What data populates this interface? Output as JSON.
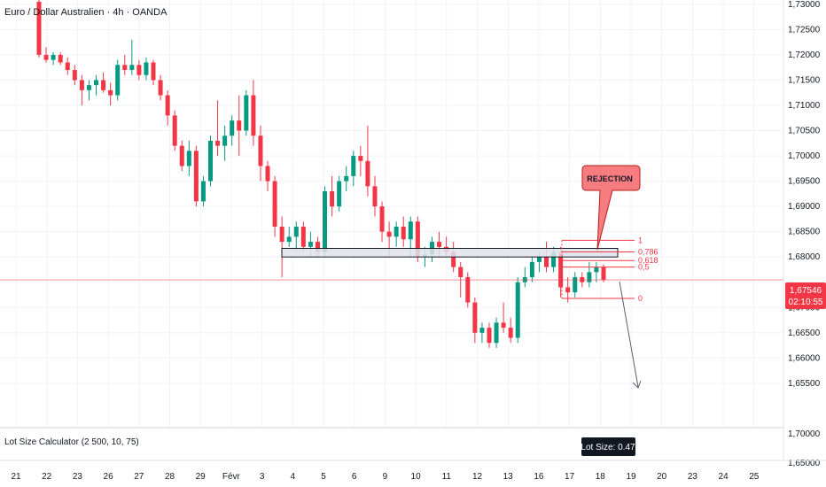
{
  "header": {
    "title": "Euro / Dollar Australien · 4h · OANDA"
  },
  "price_axis": {
    "ticks": [
      "1,73000",
      "1,72500",
      "1,72000",
      "1,71500",
      "1,71000",
      "1,70500",
      "1,70000",
      "1,69500",
      "1,69000",
      "1,68500",
      "1,68000",
      "1,67000",
      "1,66500",
      "1,66000",
      "1,65500"
    ],
    "tick_values": [
      1.73,
      1.725,
      1.72,
      1.715,
      1.71,
      1.705,
      1.7,
      1.695,
      1.69,
      1.685,
      1.68,
      1.67,
      1.665,
      1.66,
      1.655
    ],
    "current_price": "1,67546",
    "countdown": "02:10:55",
    "current_value": 1.67546,
    "indicator_ticks": [
      "1,70000",
      "1,65000"
    ]
  },
  "time_axis": {
    "labels": [
      "21",
      "22",
      "23",
      "26",
      "27",
      "28",
      "29",
      "Févr",
      "3",
      "4",
      "5",
      "6",
      "9",
      "10",
      "11",
      "12",
      "13",
      "16",
      "17",
      "18",
      "19",
      "20",
      "23",
      "24",
      "25"
    ]
  },
  "annotation": {
    "text": "REJECTION"
  },
  "fib_levels": [
    {
      "label": "1",
      "value": 1.6833
    },
    {
      "label": "0,786",
      "value": 1.681
    },
    {
      "label": "0,618",
      "value": 1.6793
    },
    {
      "label": "0,5",
      "value": 1.678
    },
    {
      "label": "0",
      "value": 1.6718
    }
  ],
  "indicator": {
    "name": "Lot Size Calculator (2 500, 10, 75)",
    "badge": "Lot Size: 0.47"
  },
  "colors": {
    "up": "#089981",
    "down": "#f23645",
    "grid": "#f0f3fa",
    "zone_fill": "#e0e3eb",
    "badge_bg": "#131722",
    "callout_fill": "#f77c80"
  },
  "chart_data": {
    "type": "candlestick",
    "title": "Euro / Dollar Australien · 4h · OANDA",
    "ylim": [
      1.652,
      1.7305
    ],
    "zone": [
      1.68,
      1.6817
    ],
    "candles": [
      [
        1.7305,
        1.731,
        1.7195,
        1.72
      ],
      [
        1.72,
        1.7215,
        1.7185,
        1.719
      ],
      [
        1.719,
        1.7205,
        1.718,
        1.72
      ],
      [
        1.72,
        1.7205,
        1.718,
        1.7185
      ],
      [
        1.7185,
        1.7195,
        1.716,
        1.717
      ],
      [
        1.717,
        1.718,
        1.714,
        1.715
      ],
      [
        1.715,
        1.716,
        1.71,
        1.713
      ],
      [
        1.713,
        1.715,
        1.711,
        1.714
      ],
      [
        1.714,
        1.716,
        1.712,
        1.715
      ],
      [
        1.715,
        1.7165,
        1.7125,
        1.713
      ],
      [
        1.713,
        1.7145,
        1.71,
        1.712
      ],
      [
        1.712,
        1.719,
        1.711,
        1.718
      ],
      [
        1.718,
        1.72,
        1.716,
        1.717
      ],
      [
        1.717,
        1.723,
        1.716,
        1.718
      ],
      [
        1.718,
        1.719,
        1.715,
        1.716
      ],
      [
        1.716,
        1.7195,
        1.715,
        1.7185
      ],
      [
        1.7185,
        1.719,
        1.714,
        1.715
      ],
      [
        1.715,
        1.716,
        1.711,
        1.712
      ],
      [
        1.712,
        1.713,
        1.706,
        1.708
      ],
      [
        1.708,
        1.709,
        1.701,
        1.702
      ],
      [
        1.702,
        1.703,
        1.697,
        1.698
      ],
      [
        1.698,
        1.703,
        1.696,
        1.701
      ],
      [
        1.701,
        1.702,
        1.69,
        1.691
      ],
      [
        1.691,
        1.696,
        1.69,
        1.695
      ],
      [
        1.695,
        1.704,
        1.694,
        1.703
      ],
      [
        1.703,
        1.711,
        1.7,
        1.702
      ],
      [
        1.702,
        1.706,
        1.699,
        1.704
      ],
      [
        1.704,
        1.708,
        1.702,
        1.707
      ],
      [
        1.707,
        1.712,
        1.7,
        1.705
      ],
      [
        1.705,
        1.713,
        1.704,
        1.712
      ],
      [
        1.712,
        1.715,
        1.702,
        1.704
      ],
      [
        1.704,
        1.706,
        1.695,
        1.698
      ],
      [
        1.698,
        1.699,
        1.693,
        1.695
      ],
      [
        1.695,
        1.696,
        1.684,
        1.686
      ],
      [
        1.686,
        1.688,
        1.676,
        1.683
      ],
      [
        1.683,
        1.686,
        1.682,
        1.684
      ],
      [
        1.684,
        1.687,
        1.681,
        1.686
      ],
      [
        1.686,
        1.687,
        1.681,
        1.682
      ],
      [
        1.682,
        1.685,
        1.68,
        1.683
      ],
      [
        1.683,
        1.684,
        1.68,
        1.681
      ],
      [
        1.681,
        1.694,
        1.68,
        1.693
      ],
      [
        1.693,
        1.696,
        1.688,
        1.69
      ],
      [
        1.69,
        1.696,
        1.689,
        1.695
      ],
      [
        1.695,
        1.698,
        1.693,
        1.696
      ],
      [
        1.696,
        1.701,
        1.694,
        1.7
      ],
      [
        1.7,
        1.702,
        1.696,
        1.699
      ],
      [
        1.699,
        1.706,
        1.692,
        1.694
      ],
      [
        1.694,
        1.696,
        1.688,
        1.69
      ],
      [
        1.69,
        1.691,
        1.683,
        1.685
      ],
      [
        1.685,
        1.687,
        1.68,
        1.684
      ],
      [
        1.684,
        1.687,
        1.682,
        1.686
      ],
      [
        1.686,
        1.688,
        1.682,
        1.6835
      ],
      [
        1.6835,
        1.688,
        1.68,
        1.687
      ],
      [
        1.687,
        1.688,
        1.679,
        1.68
      ],
      [
        1.68,
        1.682,
        1.678,
        1.6805
      ],
      [
        1.6805,
        1.684,
        1.679,
        1.683
      ],
      [
        1.683,
        1.685,
        1.68,
        1.682
      ],
      [
        1.682,
        1.684,
        1.68,
        1.681
      ],
      [
        1.681,
        1.683,
        1.677,
        1.678
      ],
      [
        1.678,
        1.679,
        1.672,
        1.676
      ],
      [
        1.676,
        1.677,
        1.67,
        1.671
      ],
      [
        1.671,
        1.672,
        1.663,
        1.665
      ],
      [
        1.665,
        1.667,
        1.663,
        1.666
      ],
      [
        1.666,
        1.667,
        1.662,
        1.663
      ],
      [
        1.663,
        1.668,
        1.662,
        1.667
      ],
      [
        1.667,
        1.671,
        1.665,
        1.666
      ],
      [
        1.666,
        1.668,
        1.663,
        1.664
      ],
      [
        1.664,
        1.676,
        1.663,
        1.675
      ],
      [
        1.675,
        1.678,
        1.674,
        1.676
      ],
      [
        1.676,
        1.68,
        1.675,
        1.679
      ],
      [
        1.679,
        1.681,
        1.677,
        1.68
      ],
      [
        1.68,
        1.683,
        1.677,
        1.678
      ],
      [
        1.678,
        1.682,
        1.677,
        1.681
      ],
      [
        1.681,
        1.682,
        1.672,
        1.674
      ],
      [
        1.674,
        1.676,
        1.671,
        1.673
      ],
      [
        1.673,
        1.677,
        1.672,
        1.676
      ],
      [
        1.676,
        1.677,
        1.674,
        1.675
      ],
      [
        1.675,
        1.679,
        1.674,
        1.677
      ],
      [
        1.677,
        1.679,
        1.675,
        1.678
      ],
      [
        1.678,
        1.6785,
        1.675,
        1.67546
      ]
    ]
  }
}
